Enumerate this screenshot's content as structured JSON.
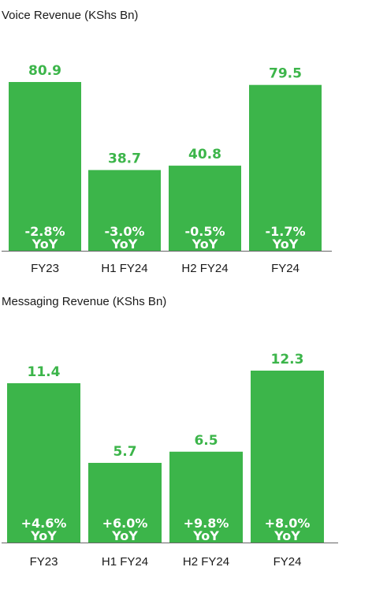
{
  "colors": {
    "bar": "#3cb54a",
    "value_text": "#3cb54a",
    "yoy_text": "#ffffff",
    "axis": "#666666"
  },
  "chart_data": [
    {
      "type": "bar",
      "title": "Voice Revenue (KShs Bn)",
      "categories": [
        "FY23",
        "H1 FY24",
        "H2 FY24",
        "FY24"
      ],
      "values": [
        80.9,
        38.7,
        40.8,
        79.5
      ],
      "value_labels": [
        "80.9",
        "38.7",
        "40.8",
        "79.5"
      ],
      "yoy_change": [
        "-2.8%",
        "-3.0%",
        "-0.5%",
        "-1.7%"
      ],
      "yoy_suffix": "YoY",
      "xlabel": "",
      "ylabel": "",
      "legend": "none",
      "grid": false
    },
    {
      "type": "bar",
      "title": "Messaging Revenue (KShs Bn)",
      "categories": [
        "FY23",
        "H1 FY24",
        "H2 FY24",
        "FY24"
      ],
      "values": [
        11.4,
        5.7,
        6.5,
        12.3
      ],
      "value_labels": [
        "11.4",
        "5.7",
        "6.5",
        "12.3"
      ],
      "yoy_change": [
        "+4.6%",
        "+6.0%",
        "+9.8%",
        "+8.0%"
      ],
      "yoy_suffix": "YoY",
      "xlabel": "",
      "ylabel": "",
      "legend": "none",
      "grid": false
    }
  ]
}
